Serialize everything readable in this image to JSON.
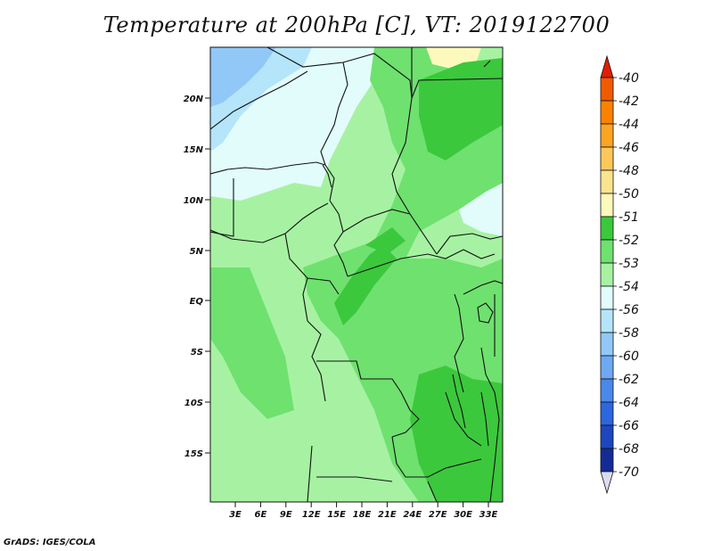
{
  "title": "Temperature at 200hPa [C], VT: 2019122700",
  "credit": "GrADS: IGES/COLA",
  "lat_labels": [
    "20N",
    "15N",
    "10N",
    "5N",
    "EQ",
    "5S",
    "10S",
    "15S"
  ],
  "lon_labels": [
    "3E",
    "6E",
    "9E",
    "12E",
    "15E",
    "18E",
    "21E",
    "24E",
    "27E",
    "30E",
    "33E"
  ],
  "colorbar": {
    "labels": [
      "-40",
      "-42",
      "-44",
      "-46",
      "-48",
      "-50",
      "-51",
      "-52",
      "-53",
      "-54",
      "-56",
      "-58",
      "-60",
      "-62",
      "-64",
      "-66",
      "-68",
      "-70"
    ],
    "colors": [
      "#e01e00",
      "#f05a00",
      "#fa8200",
      "#fca521",
      "#fcc85a",
      "#fce48e",
      "#fdf9bd",
      "#3cc83c",
      "#6fe16f",
      "#a6f2a2",
      "#e2fcfc",
      "#b5e5fb",
      "#92c8f7",
      "#6fa8f2",
      "#4a88ea",
      "#2d66de",
      "#1e46be",
      "#142b96",
      "#0b0f6e"
    ]
  },
  "map": {
    "extent": "0E–35E, 20S–24N",
    "region": "Central Africa",
    "colors": {
      "background": "#e2fcfc",
      "light_green": "#a6f2a2",
      "mid_green": "#6fe16f",
      "dark_green": "#3cc83c",
      "light_blue": "#b5e5fb",
      "blue": "#92c8f7",
      "yellow": "#fdf9bd"
    }
  }
}
